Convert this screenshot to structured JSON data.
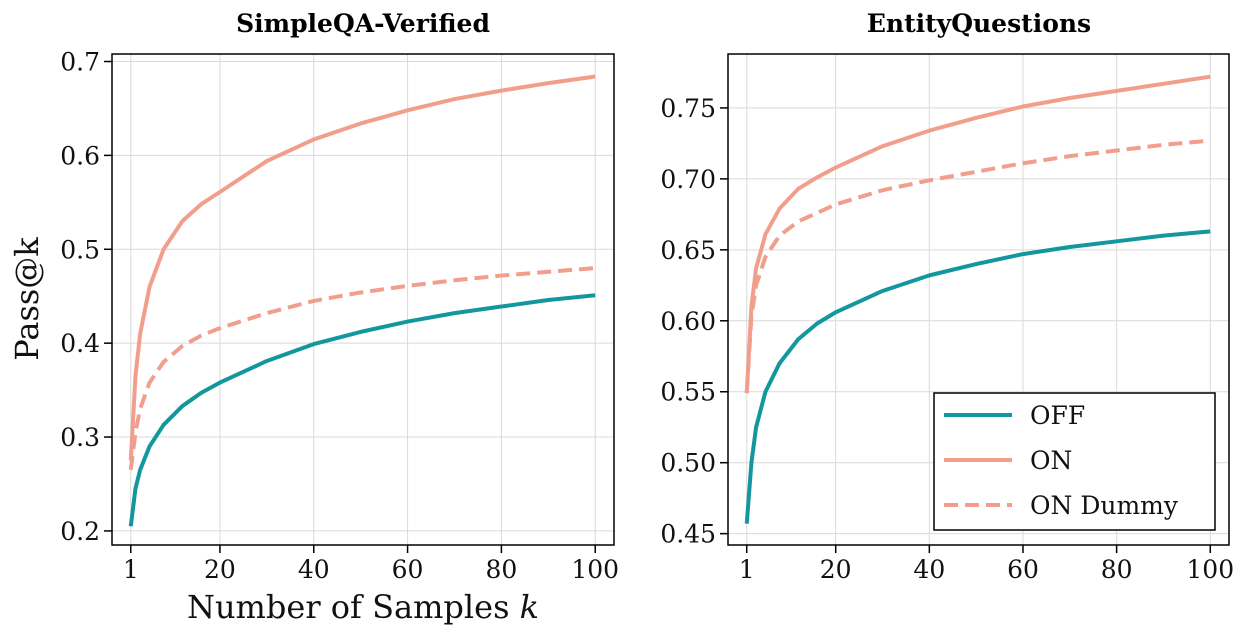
{
  "chart_data": [
    {
      "type": "line",
      "title": "SimpleQA-Verified",
      "xlabel": "Number of Samples k",
      "ylabel": "Pass@k",
      "xlim": [
        -3,
        104
      ],
      "ylim": [
        0.185,
        0.708
      ],
      "xticks": [
        1,
        20,
        40,
        60,
        80,
        100
      ],
      "yticks": [
        0.2,
        0.3,
        0.4,
        0.5,
        0.6,
        0.7
      ],
      "ytick_labels": [
        "0.2",
        "0.3",
        "0.4",
        "0.5",
        "0.6",
        "0.7"
      ],
      "grid": true,
      "x": [
        1,
        2,
        3,
        5,
        8,
        12,
        16,
        20,
        30,
        40,
        50,
        60,
        70,
        80,
        90,
        100
      ],
      "series": [
        {
          "name": "OFF",
          "color": "#13979f",
          "style": "solid",
          "values": [
            0.205,
            0.245,
            0.265,
            0.29,
            0.313,
            0.333,
            0.347,
            0.358,
            0.381,
            0.399,
            0.412,
            0.423,
            0.432,
            0.439,
            0.446,
            0.451
          ]
        },
        {
          "name": "ON",
          "color": "#f29e8c",
          "style": "solid",
          "values": [
            0.275,
            0.365,
            0.41,
            0.46,
            0.5,
            0.53,
            0.548,
            0.561,
            0.594,
            0.617,
            0.634,
            0.648,
            0.66,
            0.669,
            0.677,
            0.684
          ]
        },
        {
          "name": "ON Dummy",
          "color": "#f29e8c",
          "style": "dashed",
          "values": [
            0.265,
            0.305,
            0.33,
            0.358,
            0.38,
            0.397,
            0.408,
            0.416,
            0.432,
            0.445,
            0.454,
            0.461,
            0.467,
            0.472,
            0.476,
            0.48
          ]
        }
      ]
    },
    {
      "type": "line",
      "title": "EntityQuestions",
      "xlabel": "",
      "ylabel": "",
      "xlim": [
        -3,
        104
      ],
      "ylim": [
        0.442,
        0.788
      ],
      "xticks": [
        1,
        20,
        40,
        60,
        80,
        100
      ],
      "yticks": [
        0.45,
        0.5,
        0.55,
        0.6,
        0.65,
        0.7,
        0.75
      ],
      "ytick_labels": [
        "0.45",
        "0.50",
        "0.55",
        "0.60",
        "0.65",
        "0.70",
        "0.75"
      ],
      "grid": true,
      "legend": {
        "placement": "lower-right",
        "entries": [
          "OFF",
          "ON",
          "ON Dummy"
        ]
      },
      "x": [
        1,
        2,
        3,
        5,
        8,
        12,
        16,
        20,
        30,
        40,
        50,
        60,
        70,
        80,
        90,
        100
      ],
      "series": [
        {
          "name": "OFF",
          "color": "#13979f",
          "style": "solid",
          "values": [
            0.457,
            0.5,
            0.525,
            0.55,
            0.57,
            0.587,
            0.598,
            0.606,
            0.621,
            0.632,
            0.64,
            0.647,
            0.652,
            0.656,
            0.66,
            0.663
          ]
        },
        {
          "name": "ON",
          "color": "#f29e8c",
          "style": "solid",
          "values": [
            0.549,
            0.61,
            0.637,
            0.661,
            0.679,
            0.693,
            0.701,
            0.708,
            0.723,
            0.734,
            0.743,
            0.751,
            0.757,
            0.762,
            0.767,
            0.772
          ]
        },
        {
          "name": "ON Dummy",
          "color": "#f29e8c",
          "style": "dashed",
          "values": [
            0.549,
            0.603,
            0.625,
            0.645,
            0.66,
            0.67,
            0.676,
            0.682,
            0.692,
            0.699,
            0.705,
            0.711,
            0.716,
            0.72,
            0.724,
            0.727
          ]
        }
      ]
    }
  ]
}
